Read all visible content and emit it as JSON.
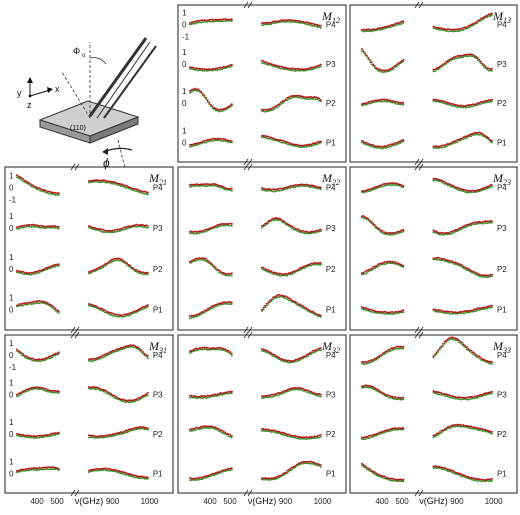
{
  "sketch": {
    "axis_x": "x",
    "axis_y": "y",
    "axis_z": "z",
    "angle_top": "Φ",
    "angle_top_sub": "o",
    "crystal_face": "(110)",
    "angle_bottom": "ϕ"
  },
  "chart_data": {
    "type": "scatter",
    "grid": false,
    "x_unit_label": "ν(GHz)",
    "x_ticks_left": [
      "400",
      "500"
    ],
    "x_ticks_right": [
      "900",
      "1000"
    ],
    "y_ticks": [
      "1",
      "0",
      "-1"
    ],
    "panel_labels": [
      "P4",
      "P3",
      "P2",
      "P1"
    ],
    "series_colors": {
      "experiment": "#3d8f2a",
      "model": "#b01818",
      "overlap": "#1a1a1a"
    },
    "panels": [
      {
        "name": "M12",
        "row": 0,
        "col": 1
      },
      {
        "name": "M13",
        "row": 0,
        "col": 2
      },
      {
        "name": "M21",
        "row": 1,
        "col": 0
      },
      {
        "name": "M22",
        "row": 1,
        "col": 1
      },
      {
        "name": "M23",
        "row": 1,
        "col": 2
      },
      {
        "name": "M31",
        "row": 2,
        "col": 0
      },
      {
        "name": "M32",
        "row": 2,
        "col": 1
      },
      {
        "name": "M33",
        "row": 2,
        "col": 2
      }
    ]
  }
}
